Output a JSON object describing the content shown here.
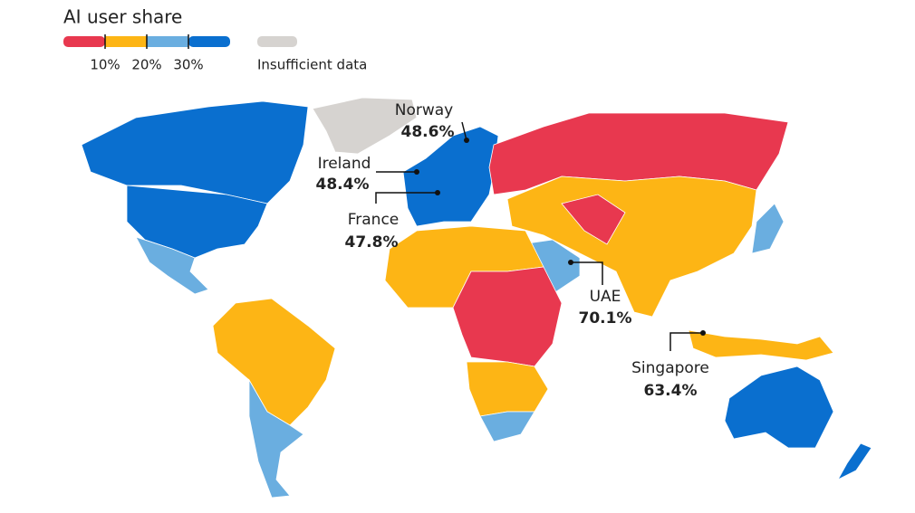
{
  "legend": {
    "title": "AI user share",
    "bins": [
      {
        "color": "#e8384f"
      },
      {
        "color": "#fdb515"
      },
      {
        "color": "#6aaee0"
      },
      {
        "color": "#0a6fcf"
      }
    ],
    "ticks": [
      "10%",
      "20%",
      "30%"
    ],
    "no_data": {
      "label": "Insufficient data",
      "color": "#d6d3d0"
    }
  },
  "callouts": [
    {
      "name": "Norway",
      "value": "48.6%"
    },
    {
      "name": "Ireland",
      "value": "48.4%"
    },
    {
      "name": "France",
      "value": "47.8%"
    },
    {
      "name": "UAE",
      "value": "70.1%"
    },
    {
      "name": "Singapore",
      "value": "63.4%"
    }
  ]
}
